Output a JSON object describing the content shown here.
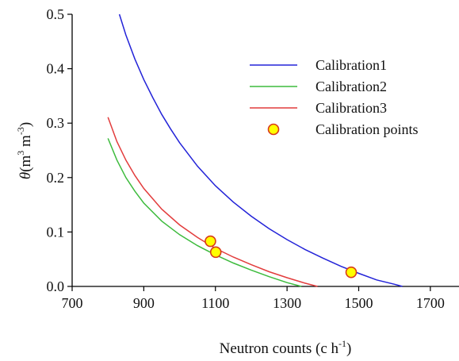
{
  "chart_data": {
    "type": "line",
    "xlabel": {
      "main": "Neutron counts (c h",
      "sup": "-1",
      "close": ")"
    },
    "ylabel": {
      "symbol": "θ",
      "unit_open": "(m",
      "sup1": "3",
      "mid": " m",
      "sup2": "-3",
      "close": ")"
    },
    "xlim": [
      700,
      1780
    ],
    "ylim": [
      0,
      0.5
    ],
    "x_ticks": [
      700,
      900,
      1100,
      1300,
      1500,
      1700
    ],
    "y_ticks": [
      0.0,
      0.1,
      0.2,
      0.3,
      0.4,
      0.5
    ],
    "x_tick_labels": [
      "700",
      "900",
      "1100",
      "1300",
      "1500",
      "1700"
    ],
    "y_tick_labels": [
      "0.0",
      "0.1",
      "0.2",
      "0.3",
      "0.4",
      "0.5"
    ],
    "grid": false,
    "legend_position": "top-right",
    "series": [
      {
        "name": "Calibration1",
        "color": "#2323d8",
        "kind": "line",
        "x": [
          832,
          850,
          875,
          900,
          925,
          950,
          975,
          1000,
          1050,
          1100,
          1150,
          1200,
          1250,
          1300,
          1350,
          1400,
          1450,
          1500,
          1550,
          1600,
          1622
        ],
        "y": [
          0.5,
          0.462,
          0.418,
          0.38,
          0.347,
          0.316,
          0.289,
          0.264,
          0.221,
          0.185,
          0.155,
          0.129,
          0.106,
          0.086,
          0.068,
          0.052,
          0.037,
          0.024,
          0.012,
          0.004,
          0.0
        ]
      },
      {
        "name": "Calibration2",
        "color": "#3dbb3d",
        "kind": "line",
        "x": [
          800,
          825,
          850,
          875,
          900,
          950,
          1000,
          1050,
          1100,
          1150,
          1200,
          1250,
          1300,
          1340
        ],
        "y": [
          0.272,
          0.232,
          0.2,
          0.175,
          0.153,
          0.12,
          0.095,
          0.075,
          0.058,
          0.043,
          0.03,
          0.018,
          0.007,
          0.0
        ]
      },
      {
        "name": "Calibration3",
        "color": "#e23c3c",
        "kind": "line",
        "x": [
          800,
          825,
          850,
          875,
          900,
          950,
          1000,
          1050,
          1100,
          1150,
          1200,
          1250,
          1300,
          1350,
          1385
        ],
        "y": [
          0.311,
          0.266,
          0.232,
          0.204,
          0.18,
          0.142,
          0.113,
          0.09,
          0.07,
          0.054,
          0.04,
          0.027,
          0.016,
          0.006,
          0.0
        ]
      },
      {
        "name": "Calibration points",
        "color": "#ffff00",
        "edge_color": "#d83a1a",
        "kind": "points",
        "x": [
          1086,
          1101,
          1479
        ],
        "y": [
          0.083,
          0.063,
          0.026
        ]
      }
    ]
  }
}
